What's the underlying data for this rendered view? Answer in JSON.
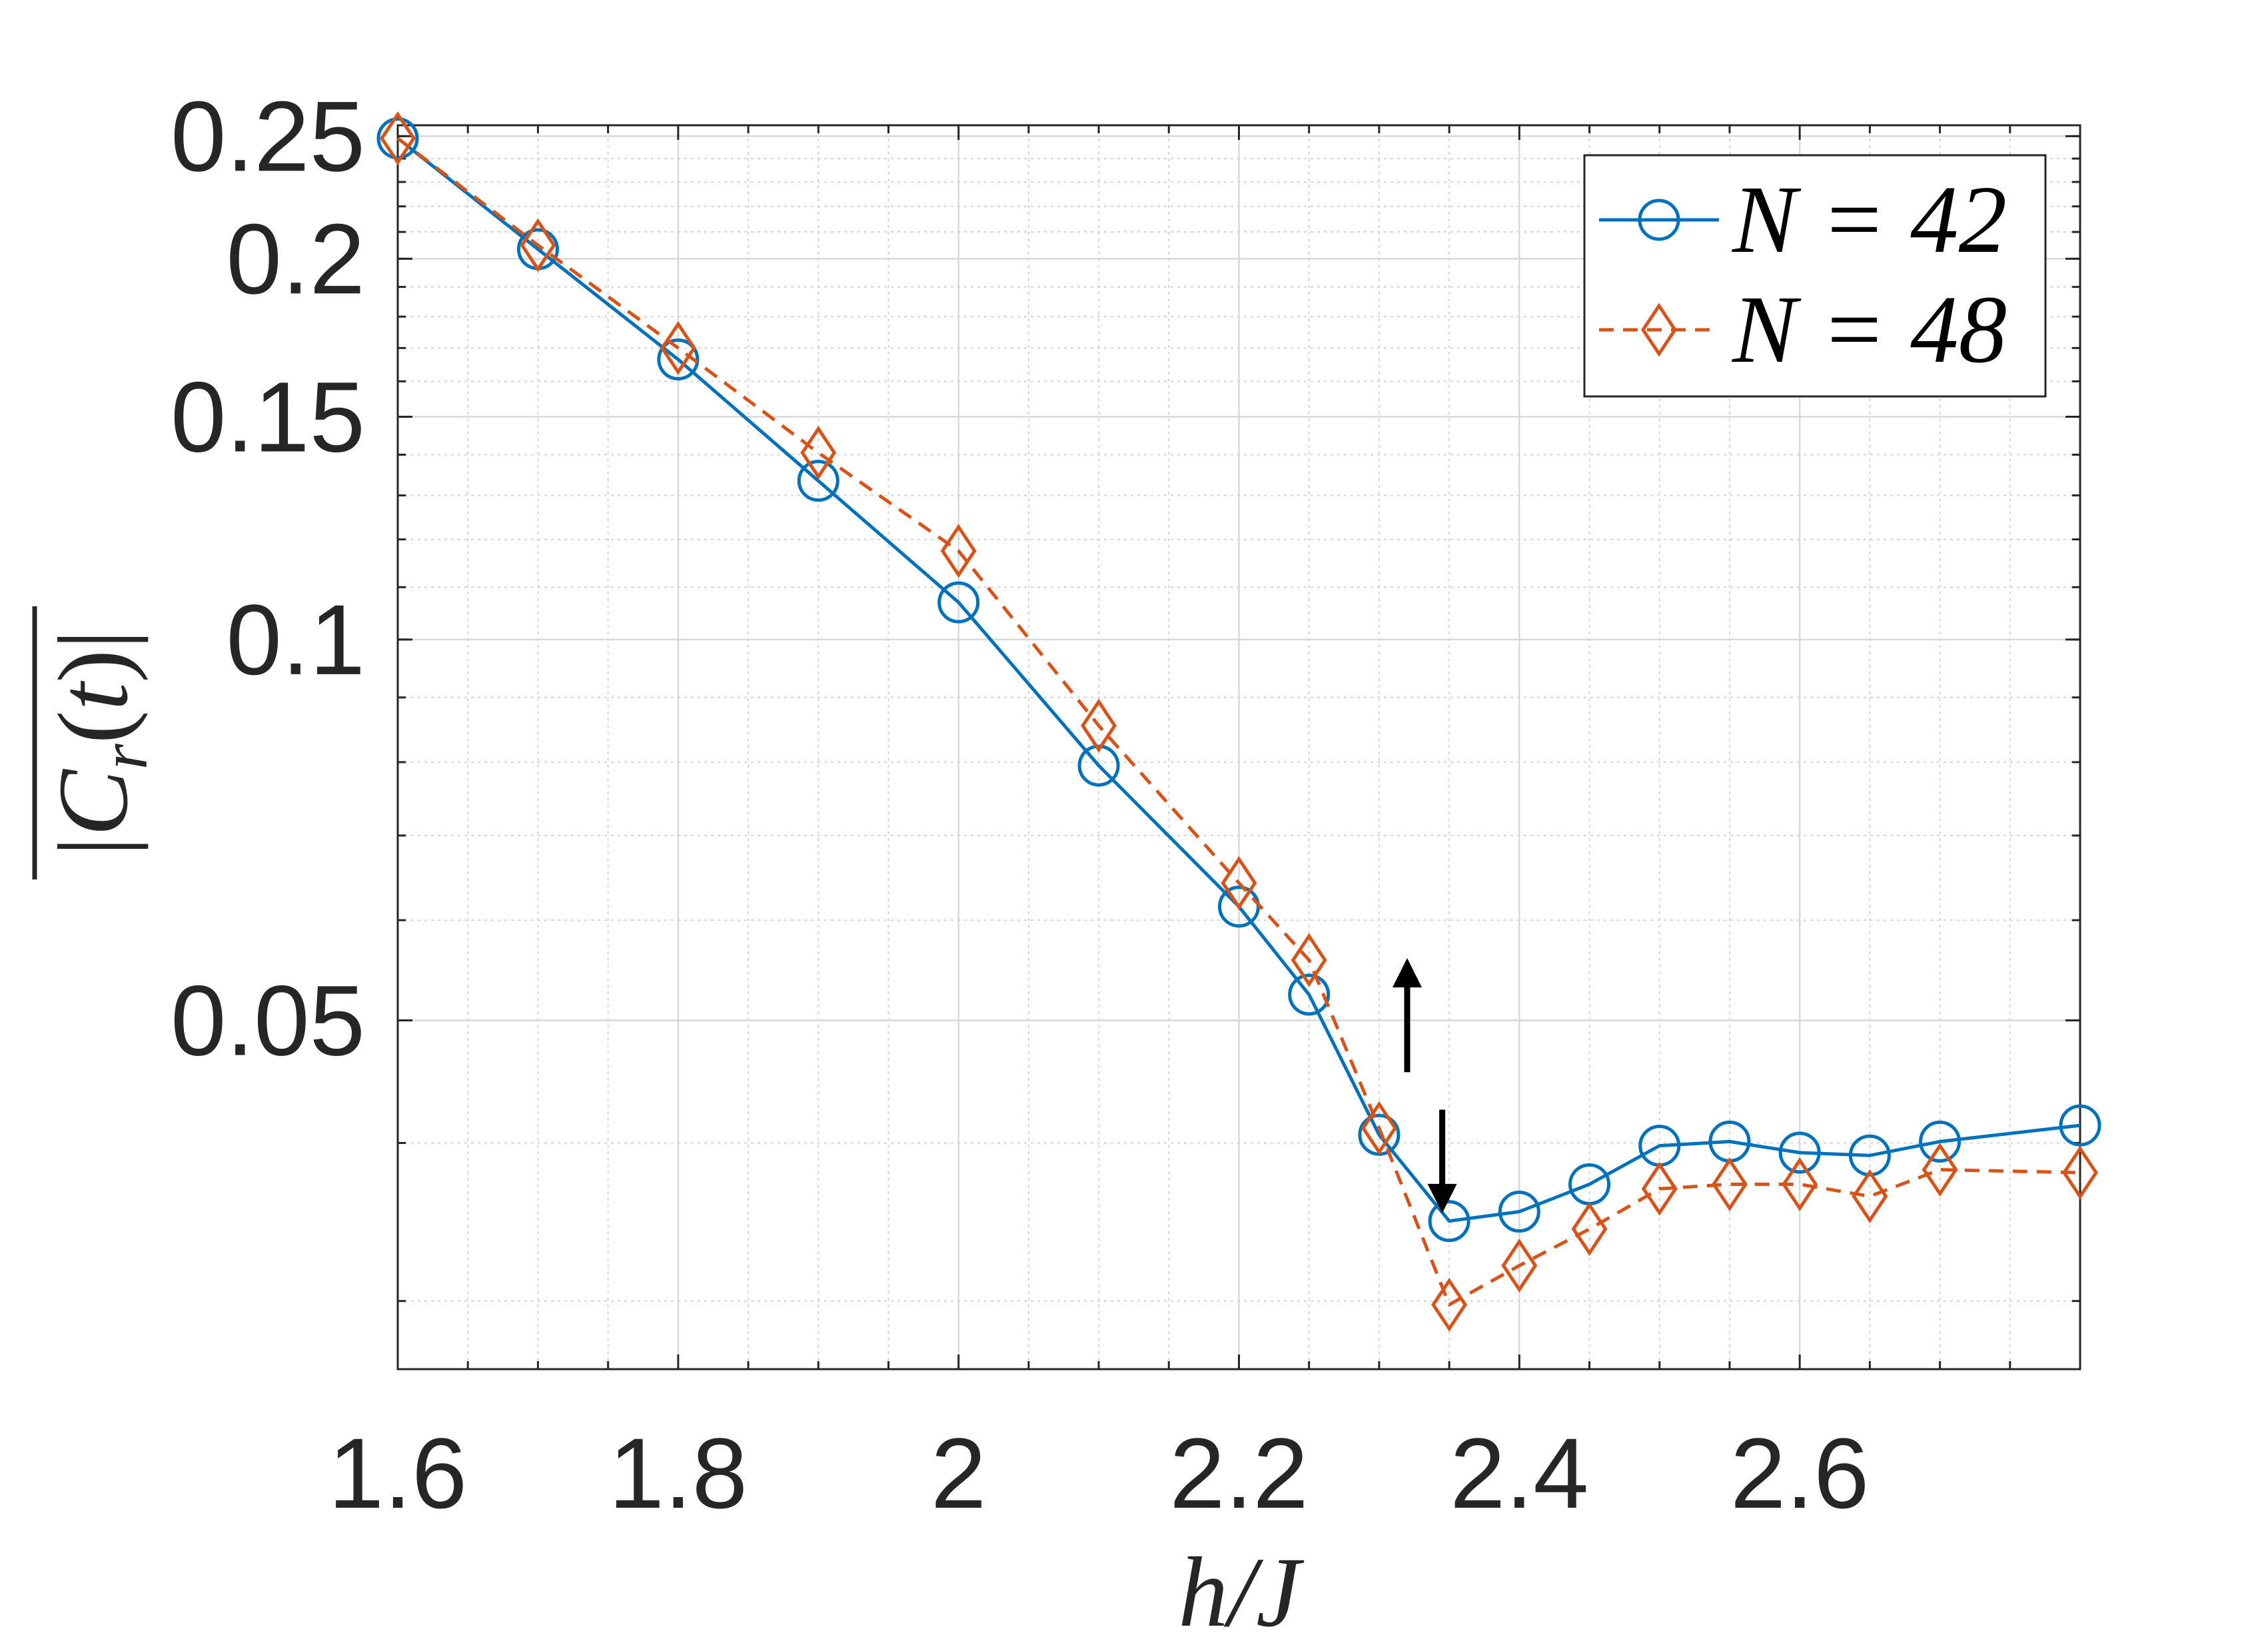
{
  "chart_data": {
    "type": "line",
    "title": "",
    "xlabel": "h/J",
    "ylabel": "|C_r(t)| (time-averaged)",
    "x_scale": "linear",
    "y_scale": "log",
    "xlim": [
      1.6,
      2.8
    ],
    "ylim": [
      0.0265,
      0.255
    ],
    "x_ticks": [
      1.6,
      1.8,
      2.0,
      2.2,
      2.4,
      2.6
    ],
    "x_tick_labels": [
      "1.6",
      "1.8",
      "2",
      "2.2",
      "2.4",
      "2.6"
    ],
    "y_ticks": [
      0.05,
      0.1,
      0.15,
      0.2,
      0.25
    ],
    "y_tick_labels": [
      "0.05",
      "0.1",
      "0.15",
      "0.2",
      "0.25"
    ],
    "grid": true,
    "minor_grid": true,
    "legend_position": "top-right",
    "series": [
      {
        "name": "N = 42",
        "color": "#0072BD",
        "line_style": "solid",
        "marker": "circle",
        "x": [
          1.6,
          1.7,
          1.8,
          1.9,
          2.0,
          2.1,
          2.2,
          2.25,
          2.3,
          2.35,
          2.4,
          2.45,
          2.5,
          2.55,
          2.6,
          2.65,
          2.7,
          2.8
        ],
        "y": [
          0.249,
          0.2035,
          0.1665,
          0.1335,
          0.107,
          0.0795,
          0.0615,
          0.0524,
          0.0406,
          0.0347,
          0.0353,
          0.0371,
          0.0398,
          0.0401,
          0.0393,
          0.0391,
          0.0401,
          0.0413
        ]
      },
      {
        "name": "N = 48",
        "color": "#D95319",
        "line_style": "dashed",
        "marker": "diamond",
        "x": [
          1.6,
          1.7,
          1.8,
          1.9,
          2.0,
          2.1,
          2.2,
          2.25,
          2.3,
          2.35,
          2.4,
          2.45,
          2.5,
          2.55,
          2.6,
          2.65,
          2.7,
          2.8
        ],
        "y": [
          0.249,
          0.205,
          0.17,
          0.1405,
          0.1175,
          0.0855,
          0.0642,
          0.0558,
          0.0411,
          0.0298,
          0.032,
          0.0342,
          0.0368,
          0.0371,
          0.0371,
          0.0363,
          0.0381,
          0.0379
        ]
      }
    ],
    "annotations": [
      {
        "type": "arrow",
        "direction": "up",
        "x": 2.32,
        "y_from": 0.0455,
        "y_to": 0.056
      },
      {
        "type": "arrow",
        "direction": "down",
        "x": 2.345,
        "y_from": 0.0425,
        "y_to": 0.0352
      }
    ]
  }
}
